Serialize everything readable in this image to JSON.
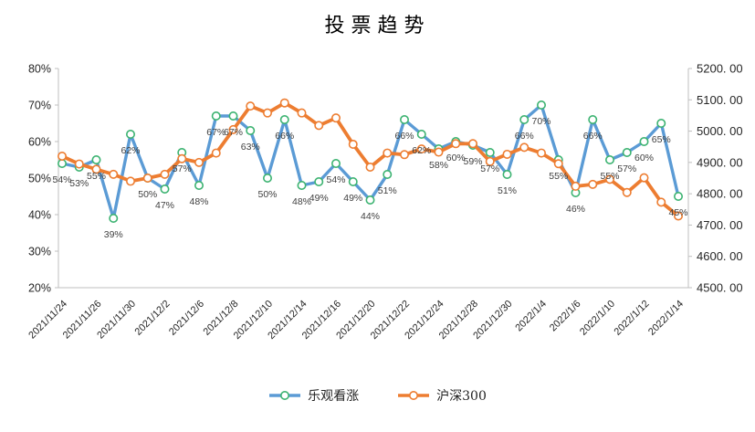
{
  "title": "投票趋势",
  "legend": [
    {
      "name": "乐观看涨",
      "line_color": "#5B9BD5",
      "marker_ring": "#3CB371"
    },
    {
      "name": "沪深300",
      "line_color": "#ED7D31",
      "marker_ring": "#ED7D31"
    }
  ],
  "colors": {
    "blue_series": "#5B9BD5",
    "orange_series": "#ED7D31",
    "blue_marker_ring": "#3CB371",
    "axis_line": "#BFBFBF",
    "tick_text": "#262626",
    "data_label_text": "#404040"
  },
  "chart_data": {
    "type": "line",
    "title": "投票趋势",
    "grid": "off",
    "legend_position": "bottom",
    "x_tick_labels": [
      "2021/11/24",
      "2021/11/26",
      "2021/11/30",
      "2021/12/2",
      "2021/12/6",
      "2021/12/8",
      "2021/12/10",
      "2021/12/14",
      "2021/12/16",
      "2021/12/20",
      "2021/12/22",
      "2021/12/24",
      "2021/12/28",
      "2021/12/30",
      "2022/1/4",
      "2022/1/6",
      "2022/1/10",
      "2022/1/12",
      "2022/1/14"
    ],
    "x_tick_every": 2,
    "n_points": 37,
    "series": [
      {
        "name": "乐观看涨",
        "axis": "left",
        "unit": "%",
        "data_labels": true,
        "values": [
          54,
          53,
          55,
          39,
          62,
          50,
          47,
          57,
          48,
          67,
          67,
          63,
          50,
          66,
          48,
          49,
          54,
          49,
          44,
          51,
          66,
          62,
          58,
          60,
          59,
          57,
          51,
          66,
          70,
          55,
          46,
          66,
          55,
          57,
          60,
          65,
          45
        ]
      },
      {
        "name": "沪深300",
        "axis": "right",
        "data_labels": false,
        "values": [
          4920,
          4895,
          4878,
          4862,
          4840,
          4850,
          4862,
          4912,
          4900,
          4930,
          5005,
          5080,
          5058,
          5090,
          5058,
          5018,
          5042,
          4958,
          4885,
          4930,
          4925,
          4943,
          4933,
          4960,
          4960,
          4903,
          4926,
          4948,
          4930,
          4896,
          4824,
          4830,
          4846,
          4804,
          4851,
          4773,
          4729
        ]
      }
    ],
    "left_axis": {
      "min": 20,
      "max": 80,
      "ticks": [
        "80%",
        "70%",
        "60%",
        "50%",
        "40%",
        "30%",
        "20%"
      ]
    },
    "right_axis": {
      "min": 4500,
      "max": 5200,
      "ticks": [
        "5200. 00",
        "5100. 00",
        "5000. 00",
        "4900. 00",
        "4800. 00",
        "4700. 00",
        "4600. 00",
        "4500. 00"
      ]
    }
  }
}
